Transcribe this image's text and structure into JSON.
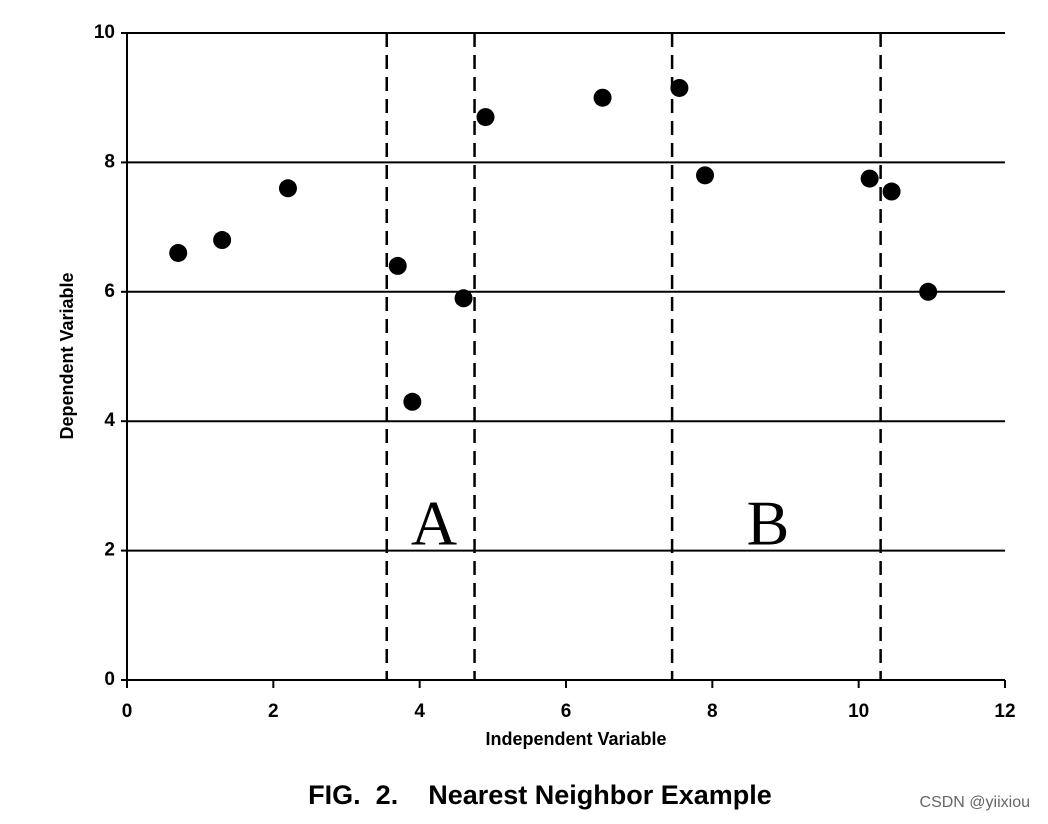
{
  "chart_data": {
    "type": "scatter",
    "title": "FIG.  2.    Nearest Neighbor Example",
    "x_label": "Independent Variable",
    "y_label": "Dependent Variable",
    "x": [
      0.7,
      1.3,
      2.2,
      3.7,
      3.9,
      4.6,
      4.9,
      6.5,
      7.55,
      7.9,
      10.15,
      10.45,
      10.95
    ],
    "y": [
      6.6,
      6.8,
      7.6,
      6.4,
      4.3,
      5.9,
      8.7,
      9.0,
      9.15,
      7.8,
      7.75,
      7.55,
      6.0
    ],
    "color": "#000000",
    "xlim": [
      0,
      12
    ],
    "xticks": [
      0,
      2,
      4,
      6,
      8,
      10,
      12
    ],
    "ylim": [
      0,
      10
    ],
    "yticks": [
      0,
      2,
      4,
      6,
      8,
      10
    ],
    "grid": true,
    "vlines": [
      3.55,
      4.75,
      7.45,
      10.3
    ],
    "annotations": [
      "A",
      "B"
    ]
  },
  "watermark": "CSDN @yiixiou"
}
